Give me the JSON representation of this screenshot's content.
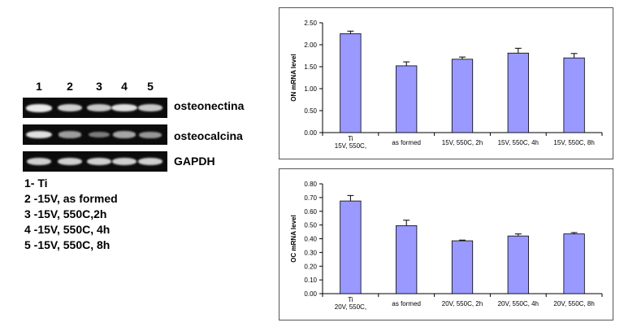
{
  "gel": {
    "lanes": [
      "1",
      "2",
      "3",
      "4",
      "5"
    ],
    "rows": [
      {
        "label": "osteonectina",
        "intensities": [
          1.0,
          0.85,
          0.8,
          0.95,
          0.8
        ]
      },
      {
        "label": "osteocalcina",
        "intensities": [
          0.95,
          0.55,
          0.35,
          0.6,
          0.5
        ]
      },
      {
        "label": "GAPDH",
        "intensities": [
          0.85,
          0.85,
          0.85,
          0.85,
          0.85
        ]
      }
    ],
    "band_color": "#e8e8e8",
    "legend": [
      "1- Ti",
      "2 -15V, as formed",
      "3 -15V, 550C,2h",
      "4 -15V, 550C, 4h",
      "5 -15V, 550C, 8h"
    ]
  },
  "chart_data": [
    {
      "type": "bar",
      "ylabel": "ON mRNA level",
      "ylim": [
        0,
        2.5
      ],
      "yticks": [
        "0.00",
        "0.50",
        "1.00",
        "1.50",
        "2.00",
        "2.50"
      ],
      "categories": [
        "Ti\n15V, 550C,",
        "as formed",
        "15V, 550C, 2h",
        "15V, 550C, 4h",
        "15V, 550C, 8h"
      ],
      "values": [
        2.25,
        1.52,
        1.67,
        1.81,
        1.7
      ],
      "errors": [
        0.06,
        0.09,
        0.05,
        0.11,
        0.1
      ],
      "bar_color": "#9999ff",
      "grid": false
    },
    {
      "type": "bar",
      "ylabel": "OC mRNA level",
      "ylim": [
        0,
        0.8
      ],
      "yticks": [
        "0.00",
        "0.10",
        "0.20",
        "0.30",
        "0.40",
        "0.50",
        "0.60",
        "0.70",
        "0.80"
      ],
      "categories": [
        "Ti\n20V, 550C,",
        "as formed",
        "20V, 550C, 2h",
        "20V, 550C, 4h",
        "20V, 550C, 8h"
      ],
      "values": [
        0.675,
        0.495,
        0.385,
        0.42,
        0.435
      ],
      "errors": [
        0.04,
        0.04,
        0.005,
        0.015,
        0.01
      ],
      "bar_color": "#9999ff",
      "grid": false
    }
  ]
}
